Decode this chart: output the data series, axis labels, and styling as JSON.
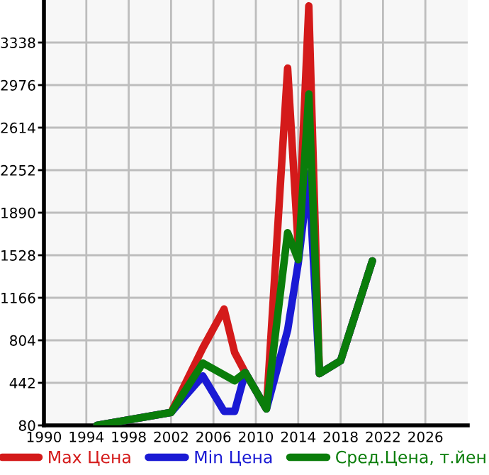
{
  "chart_data": {
    "type": "line",
    "xlim": [
      1990,
      2030
    ],
    "xticks": [
      1990,
      1994,
      1998,
      2002,
      2006,
      2010,
      2014,
      2018,
      2022,
      2026
    ],
    "ylim": [
      80,
      3700
    ],
    "yticks": [
      80,
      442,
      804,
      1166,
      1528,
      1890,
      2252,
      2614,
      2976,
      3338
    ],
    "grid": true,
    "legend": "bottom",
    "marker": "none",
    "line_style": "solid",
    "series": [
      {
        "name": "Max Цена",
        "color": "#d41a1a",
        "x": [
          1995,
          2002,
          2005,
          2007,
          2008,
          2009,
          2011,
          2013,
          2014,
          2015,
          2016,
          2018,
          2021
        ],
        "values": [
          80,
          190,
          740,
          1070,
          700,
          530,
          220,
          3120,
          1600,
          3650,
          520,
          630,
          1480
        ]
      },
      {
        "name": "Min Цена",
        "color": "#1a1ad4",
        "x": [
          1995,
          2002,
          2005,
          2007,
          2008,
          2009,
          2011,
          2013,
          2014,
          2015,
          2016,
          2018,
          2021
        ],
        "values": [
          80,
          190,
          500,
          200,
          200,
          530,
          220,
          890,
          1460,
          2220,
          520,
          630,
          1480
        ]
      },
      {
        "name": "Сред.Цена, т.йен",
        "color": "#0a7d0a",
        "x": [
          1995,
          2002,
          2005,
          2008,
          2009,
          2011,
          2013,
          2014,
          2015,
          2016,
          2018,
          2021
        ],
        "values": [
          80,
          190,
          610,
          460,
          530,
          220,
          1720,
          1490,
          2900,
          520,
          630,
          1480
        ]
      }
    ]
  }
}
